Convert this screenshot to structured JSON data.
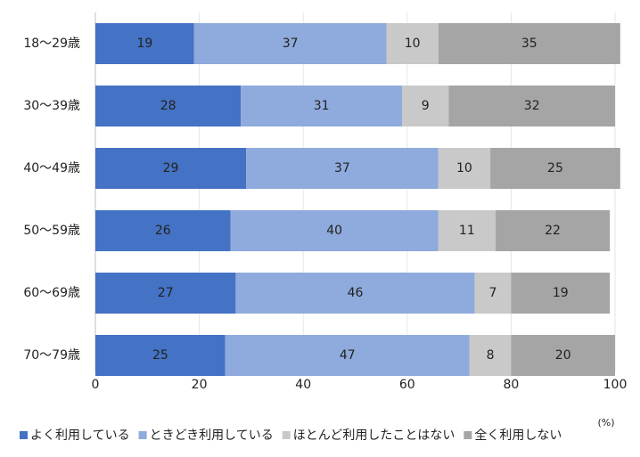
{
  "chart_data": {
    "type": "stacked-barh",
    "categories": [
      "18～29歳",
      "30～39歳",
      "40～49歳",
      "50～59歳",
      "60～69歳",
      "70～79歳"
    ],
    "series": [
      {
        "name": "よく利用している",
        "color": "#4472c4",
        "values": [
          19,
          28,
          29,
          26,
          27,
          25
        ]
      },
      {
        "name": "ときどき利用している",
        "color": "#8faadc",
        "values": [
          37,
          31,
          37,
          40,
          46,
          47
        ]
      },
      {
        "name": "ほとんど利用したことはない",
        "color": "#c9c9c9",
        "values": [
          10,
          9,
          10,
          11,
          7,
          8
        ]
      },
      {
        "name": "全く利用しない",
        "color": "#a5a5a5",
        "values": [
          35,
          32,
          25,
          22,
          19,
          20
        ]
      }
    ],
    "xlim": [
      0,
      100
    ],
    "xticks": [
      0,
      20,
      40,
      60,
      80,
      100
    ],
    "x_label": "(%)",
    "grid": true,
    "legend": "bottom"
  }
}
